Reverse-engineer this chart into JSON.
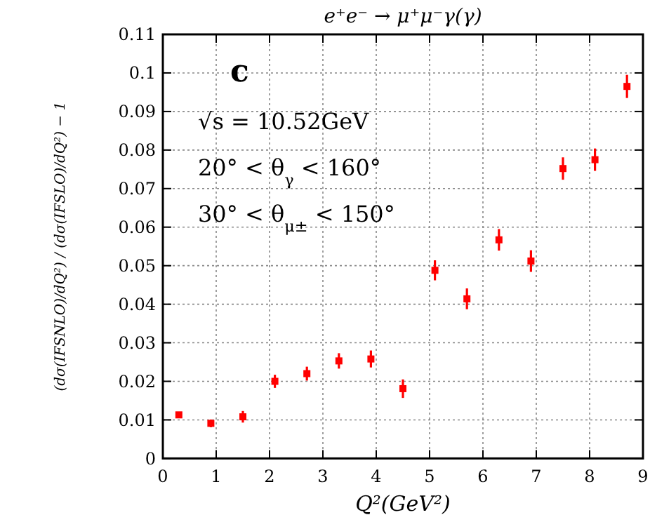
{
  "chart_data": {
    "type": "scatter",
    "title": "e⁺e⁻ → μ⁺μ⁻γ(γ)",
    "xlabel": "Q²(GeV²)",
    "ylabel": "(dσ(IFSNLO)/dQ²) / (dσ(IFSLO)/dQ²) − 1",
    "annotations": [
      "c",
      "√s = 10.52GeV",
      "20° < θ$_{γ}$ < 160°",
      "30° < θ$_{μ±}$ < 150°"
    ],
    "x": [
      0.3,
      0.9,
      1.5,
      2.1,
      2.7,
      3.3,
      3.9,
      4.5,
      5.1,
      5.7,
      6.3,
      6.9,
      7.5,
      8.1,
      8.7
    ],
    "series": [
      {
        "color": "#ff0000",
        "values": [
          0.0113,
          0.0091,
          0.0108,
          0.02,
          0.022,
          0.0253,
          0.0258,
          0.0181,
          0.0488,
          0.0414,
          0.0567,
          0.0512,
          0.0752,
          0.0775,
          0.0965
        ],
        "errors": [
          0.0005,
          0.001,
          0.0015,
          0.0017,
          0.0018,
          0.002,
          0.0022,
          0.0024,
          0.0026,
          0.0027,
          0.0028,
          0.0028,
          0.0029,
          0.0029,
          0.003
        ]
      }
    ],
    "xlim": [
      0,
      9
    ],
    "xticks": [
      0,
      1,
      2,
      3,
      4,
      5,
      6,
      7,
      8,
      9
    ],
    "ylim": [
      0,
      0.11
    ],
    "yticks": [
      0,
      0.01,
      0.02,
      0.03,
      0.04,
      0.05,
      0.06,
      0.07,
      0.08,
      0.09,
      0.1,
      0.11
    ],
    "grid": true,
    "marker": "square"
  }
}
